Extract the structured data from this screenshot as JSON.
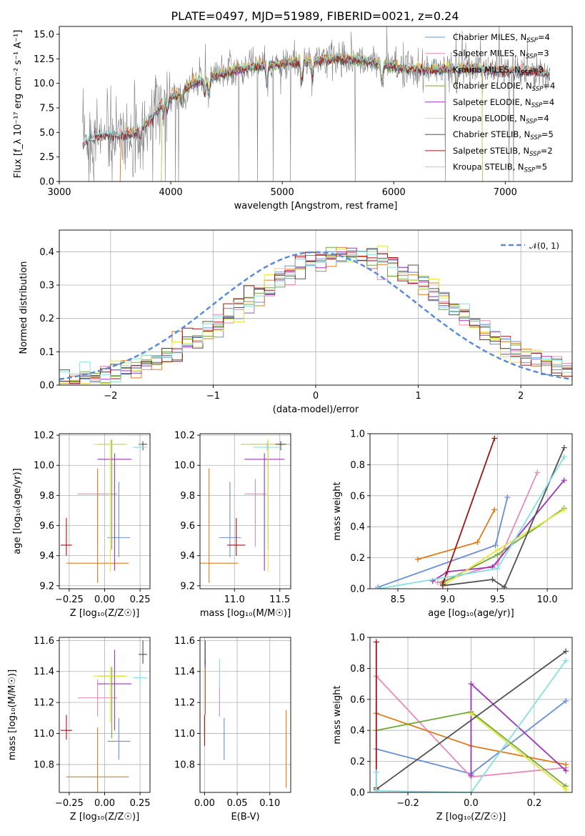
{
  "figure": {
    "title": "PLATE=0497, MJD=51989, FIBERID=0021, z=0.24"
  },
  "colors": {
    "chabrier_miles": "#6a8fd8",
    "salpeter_miles": "#e889b9",
    "kroupa_miles": "#e07b1d",
    "chabrier_elodie": "#70a83a",
    "salpeter_elodie": "#9b35b8",
    "kroupa_elodie": "#e4e63a",
    "chabrier_stelib": "#505050",
    "salpeter_stelib": "#a31212",
    "kroupa_stelib": "#85dfe0",
    "gaussian": "#5b8bd6",
    "data": "#7f7f7f"
  },
  "chart_data": [
    {
      "id": "spectrum",
      "type": "line",
      "xlabel": "wavelength [Angstrom, rest frame]",
      "ylabel": "Flux [f_λ 10⁻¹⁷ erg cm⁻² s⁻¹ A⁻¹]",
      "xlim": [
        3000,
        7600
      ],
      "ylim": [
        0,
        15.8
      ],
      "xticks": [
        "3000",
        "4000",
        "5000",
        "6000",
        "7000"
      ],
      "yticks": [
        "0.0",
        "2.5",
        "5.0",
        "7.5",
        "10.0",
        "12.5",
        "15.0"
      ],
      "grid": false,
      "legend_position": "top-right",
      "continuum": {
        "x": [
          3210,
          3300,
          3400,
          3550,
          3700,
          3850,
          3950,
          4050,
          4200,
          4400,
          4600,
          4800,
          5000,
          5200,
          5500,
          5800,
          6100,
          6400,
          6700,
          7000,
          7300,
          7400
        ],
        "y": [
          3.8,
          4.6,
          4.8,
          4.7,
          4.9,
          6.8,
          8.4,
          8.8,
          10.0,
          10.8,
          11.4,
          11.8,
          12.0,
          12.3,
          12.5,
          12.2,
          11.5,
          11.4,
          11.6,
          11.2,
          11.3,
          11.0
        ]
      },
      "series": [
        {
          "name": "Chabrier MILES, N_SSP=4",
          "color_key": "chabrier_miles",
          "x_start": 3540,
          "x_end": 7400
        },
        {
          "name": "Salpeter MILES, N_SSP=3",
          "color_key": "salpeter_miles",
          "x_start": 3540,
          "x_end": 7400
        },
        {
          "name": "Kroupa MILES, N_SSP=3",
          "color_key": "kroupa_miles",
          "x_start": 3540,
          "x_end": 7400
        },
        {
          "name": "Chabrier ELODIE, N_SSP=4",
          "color_key": "chabrier_elodie",
          "x_start": 3910,
          "x_end": 6800
        },
        {
          "name": "Salpeter ELODIE, N_SSP=4",
          "color_key": "salpeter_elodie",
          "x_start": 3910,
          "x_end": 6800
        },
        {
          "name": "Kroupa ELODIE, N_SSP=4",
          "color_key": "kroupa_elodie",
          "x_start": 3910,
          "x_end": 6800
        },
        {
          "name": "Chabrier STELIB, N_SSP=5",
          "color_key": "chabrier_stelib",
          "x_start": 3210,
          "x_end": 7400
        },
        {
          "name": "Salpeter STELIB, N_SSP=2",
          "color_key": "salpeter_stelib",
          "x_start": 3210,
          "x_end": 7400
        },
        {
          "name": "Kroupa STELIB, N_SSP=5",
          "color_key": "kroupa_stelib",
          "x_start": 3210,
          "x_end": 7400
        }
      ]
    },
    {
      "id": "residuals",
      "type": "line",
      "xlabel": "(data-model)/error",
      "ylabel": "Normed distribution",
      "xlim": [
        -2.5,
        2.5
      ],
      "ylim": [
        0,
        0.465
      ],
      "xticks": [
        "−2",
        "−1",
        "0",
        "1",
        "2"
      ],
      "yticks": [
        "0.0",
        "0.1",
        "0.2",
        "0.3",
        "0.4"
      ],
      "grid": true,
      "legend_position": "top-right",
      "legend": "𝒩(0, 1)",
      "histogram_style": "step",
      "bin_width": 0.1
    },
    {
      "id": "age_vs_Z",
      "type": "scatter",
      "xlabel": "Z [log₁₀(Z/Z☉)]",
      "ylabel": "age  [log₁₀(age/yr)]",
      "xlim": [
        -0.32,
        0.32
      ],
      "ylim": [
        9.18,
        10.21
      ],
      "xticks": [
        -0.25,
        0.0,
        0.25
      ],
      "yticks": [
        9.2,
        9.4,
        9.6,
        9.8,
        10.0,
        10.2
      ],
      "grid": true,
      "points": [
        {
          "key": "chabrier_miles",
          "x": 0.1,
          "xerr": [
            0.08,
            0.08
          ],
          "y": 9.52,
          "yerr": [
            0.13,
            0.37
          ]
        },
        {
          "key": "salpeter_miles",
          "x": -0.05,
          "xerr": [
            0.14,
            0.14
          ],
          "y": 9.81,
          "yerr": [
            0.35,
            0.1
          ]
        },
        {
          "key": "kroupa_miles",
          "x": -0.05,
          "xerr": [
            0.22,
            0.22
          ],
          "y": 9.35,
          "yerr": [
            0.13,
            0.63
          ]
        },
        {
          "key": "chabrier_elodie",
          "x": 0.05,
          "xerr": [
            0.1,
            0.1
          ],
          "y": 10.14,
          "yerr": [
            0.7,
            0.03
          ]
        },
        {
          "key": "salpeter_elodie",
          "x": 0.07,
          "xerr": [
            0.12,
            0.12
          ],
          "y": 10.04,
          "yerr": [
            0.74,
            0.04
          ]
        },
        {
          "key": "kroupa_elodie",
          "x": 0.04,
          "xerr": [
            0.12,
            0.12
          ],
          "y": 10.14,
          "yerr": [
            0.85,
            0.03
          ]
        },
        {
          "key": "chabrier_stelib",
          "x": 0.27,
          "xerr": [
            0.03,
            0.03
          ],
          "y": 10.14,
          "yerr": [
            0.04,
            0.02
          ]
        },
        {
          "key": "salpeter_stelib",
          "x": -0.27,
          "xerr": [
            0.04,
            0.04
          ],
          "y": 9.47,
          "yerr": [
            0.07,
            0.18
          ]
        },
        {
          "key": "kroupa_stelib",
          "x": 0.25,
          "xerr": [
            0.05,
            0.05
          ],
          "y": 10.12,
          "yerr": [
            0.02,
            0.03
          ]
        }
      ]
    },
    {
      "id": "age_vs_mass",
      "type": "scatter",
      "xlabel": "mass [log₁₀(M/M☉)]",
      "ylabel": "",
      "xlim": [
        10.62,
        11.62
      ],
      "ylim": [
        9.18,
        10.21
      ],
      "xticks": [
        11.0,
        11.5
      ],
      "yticks": [
        9.2,
        9.4,
        9.6,
        9.8,
        10.0,
        10.2
      ],
      "grid": true,
      "points": [
        {
          "key": "chabrier_miles",
          "x": 10.95,
          "xerr": [
            0.12,
            0.12
          ],
          "y": 9.52,
          "yerr": [
            0.13,
            0.37
          ]
        },
        {
          "key": "salpeter_miles",
          "x": 11.23,
          "xerr": [
            0.12,
            0.12
          ],
          "y": 9.81,
          "yerr": [
            0.35,
            0.1
          ]
        },
        {
          "key": "kroupa_miles",
          "x": 10.72,
          "xerr": [
            0.32,
            0.32
          ],
          "y": 9.35,
          "yerr": [
            0.13,
            0.63
          ]
        },
        {
          "key": "chabrier_elodie",
          "x": 11.37,
          "xerr": [
            0.3,
            0.3
          ],
          "y": 10.14,
          "yerr": [
            0.7,
            0.03
          ]
        },
        {
          "key": "salpeter_elodie",
          "x": 11.33,
          "xerr": [
            0.22,
            0.22
          ],
          "y": 10.04,
          "yerr": [
            0.74,
            0.04
          ]
        },
        {
          "key": "kroupa_elodie",
          "x": 11.37,
          "xerr": [
            0.3,
            0.3
          ],
          "y": 10.14,
          "yerr": [
            0.85,
            0.03
          ]
        },
        {
          "key": "chabrier_stelib",
          "x": 11.51,
          "xerr": [
            0.06,
            0.06
          ],
          "y": 10.14,
          "yerr": [
            0.04,
            0.02
          ]
        },
        {
          "key": "salpeter_stelib",
          "x": 11.02,
          "xerr": [
            0.1,
            0.1
          ],
          "y": 9.47,
          "yerr": [
            0.07,
            0.18
          ]
        },
        {
          "key": "kroupa_stelib",
          "x": 11.36,
          "xerr": [
            0.15,
            0.15
          ],
          "y": 10.12,
          "yerr": [
            0.02,
            0.03
          ]
        }
      ]
    },
    {
      "id": "weight_vs_age",
      "type": "line",
      "xlabel": "age  [log₁₀(age/yr)]",
      "ylabel": "mass weight",
      "xlim": [
        8.22,
        10.25
      ],
      "ylim": [
        0,
        1.0
      ],
      "xticks": [
        8.5,
        9.0,
        9.5,
        10.0
      ],
      "yticks": [
        0.0,
        0.2,
        0.4,
        0.6,
        0.8,
        1.0
      ],
      "grid": true,
      "series": [
        {
          "key": "chabrier_miles",
          "x": [
            8.3,
            9.48,
            9.6
          ],
          "y": [
            0.01,
            0.28,
            0.59
          ]
        },
        {
          "key": "salpeter_miles",
          "x": [
            8.9,
            9.5,
            9.9
          ],
          "y": [
            0.04,
            0.16,
            0.75
          ]
        },
        {
          "key": "kroupa_miles",
          "x": [
            8.7,
            9.3,
            9.47
          ],
          "y": [
            0.19,
            0.3,
            0.51
          ]
        },
        {
          "key": "chabrier_elodie",
          "x": [
            8.95,
            9.5,
            10.17
          ],
          "y": [
            0.04,
            0.22,
            0.52
          ]
        },
        {
          "key": "salpeter_elodie",
          "x": [
            8.85,
            9.0,
            9.45,
            10.17
          ],
          "y": [
            0.05,
            0.11,
            0.14,
            0.7
          ]
        },
        {
          "key": "kroupa_elodie",
          "x": [
            8.95,
            9.5,
            10.17
          ],
          "y": [
            0.02,
            0.25,
            0.51
          ]
        },
        {
          "key": "chabrier_stelib",
          "x": [
            8.95,
            9.45,
            9.57,
            10.17
          ],
          "y": [
            0.02,
            0.06,
            0.01,
            0.91
          ]
        },
        {
          "key": "salpeter_stelib",
          "x": [
            8.95,
            9.47
          ],
          "y": [
            0.03,
            0.97
          ]
        },
        {
          "key": "kroupa_stelib",
          "x": [
            8.3,
            9.5,
            10.17
          ],
          "y": [
            0.0,
            0.13,
            0.85
          ]
        }
      ]
    },
    {
      "id": "mass_vs_Z",
      "type": "scatter",
      "xlabel": "Z [log₁₀(Z/Z☉)]",
      "ylabel": "mass [log₁₀(M/M☉)]",
      "xlim": [
        -0.32,
        0.32
      ],
      "ylim": [
        10.62,
        11.62
      ],
      "xticks": [
        -0.25,
        0.0,
        0.25
      ],
      "yticks": [
        10.8,
        11.0,
        11.2,
        11.4,
        11.6
      ],
      "grid": true,
      "points": [
        {
          "key": "chabrier_miles",
          "x": 0.1,
          "xerr": [
            0.08,
            0.08
          ],
          "y": 10.95,
          "yerr": [
            0.12,
            0.15
          ]
        },
        {
          "key": "salpeter_miles",
          "x": -0.05,
          "xerr": [
            0.14,
            0.14
          ],
          "y": 11.23,
          "yerr": [
            0.12,
            0.12
          ]
        },
        {
          "key": "kroupa_miles",
          "x": -0.05,
          "xerr": [
            0.22,
            0.22
          ],
          "y": 10.72,
          "yerr": [
            0.1,
            0.32
          ]
        },
        {
          "key": "chabrier_elodie",
          "x": 0.05,
          "xerr": [
            0.1,
            0.1
          ],
          "y": 11.37,
          "yerr": [
            0.4,
            0.06
          ]
        },
        {
          "key": "salpeter_elodie",
          "x": 0.07,
          "xerr": [
            0.12,
            0.12
          ],
          "y": 11.32,
          "yerr": [
            0.3,
            0.22
          ]
        },
        {
          "key": "kroupa_elodie",
          "x": 0.04,
          "xerr": [
            0.12,
            0.12
          ],
          "y": 11.37,
          "yerr": [
            0.3,
            0.06
          ]
        },
        {
          "key": "chabrier_stelib",
          "x": 0.27,
          "xerr": [
            0.03,
            0.03
          ],
          "y": 11.51,
          "yerr": [
            0.06,
            0.09
          ]
        },
        {
          "key": "salpeter_stelib",
          "x": -0.27,
          "xerr": [
            0.04,
            0.04
          ],
          "y": 11.02,
          "yerr": [
            0.06,
            0.1
          ]
        },
        {
          "key": "kroupa_stelib",
          "x": 0.25,
          "xerr": [
            0.05,
            0.05
          ],
          "y": 11.36,
          "yerr": [
            0.05,
            0.06
          ]
        }
      ]
    },
    {
      "id": "mass_vs_ebv",
      "type": "scatter",
      "xlabel": "E(B-V)",
      "ylabel": "",
      "xlim": [
        -0.007,
        0.132
      ],
      "ylim": [
        10.62,
        11.62
      ],
      "xticks": [
        0.0,
        0.05,
        0.1
      ],
      "yticks": [
        10.8,
        11.0,
        11.2,
        11.4,
        11.6
      ],
      "grid": true,
      "points": [
        {
          "key": "chabrier_miles",
          "x": 0.03,
          "y": 10.95,
          "yerr": [
            0.12,
            0.15
          ]
        },
        {
          "key": "salpeter_miles",
          "x": 0.023,
          "y": 11.23,
          "yerr": [
            0.12,
            0.12
          ]
        },
        {
          "key": "kroupa_miles",
          "x": 0.125,
          "y": 10.72,
          "yerr": [
            0.07,
            0.43
          ]
        },
        {
          "key": "chabrier_elodie",
          "x": 0.0,
          "y": 11.37,
          "yerr": [
            0.4,
            0.06
          ]
        },
        {
          "key": "salpeter_elodie",
          "x": 0.001,
          "y": 11.32,
          "yerr": [
            0.2,
            0.15
          ]
        },
        {
          "key": "kroupa_elodie",
          "x": 0.0,
          "y": 11.37,
          "yerr": [
            0.4,
            0.06
          ]
        },
        {
          "key": "chabrier_stelib",
          "x": 0.001,
          "y": 11.51,
          "yerr": [
            0.06,
            0.09
          ]
        },
        {
          "key": "salpeter_stelib",
          "x": 0.0,
          "y": 11.02,
          "yerr": [
            0.1,
            0.1
          ]
        },
        {
          "key": "kroupa_stelib",
          "x": 0.023,
          "y": 11.36,
          "yerr": [
            0.06,
            0.12
          ]
        }
      ]
    },
    {
      "id": "weight_vs_Z",
      "type": "line",
      "xlabel": "Z [log₁₀(Z/Z☉)]",
      "ylabel": "mass weight",
      "xlim": [
        -0.32,
        0.32
      ],
      "ylim": [
        0,
        1.0
      ],
      "xticks": [
        -0.2,
        0.0,
        0.2
      ],
      "yticks": [
        0.0,
        0.2,
        0.4,
        0.6,
        0.8,
        1.0
      ],
      "grid": true,
      "series": [
        {
          "key": "chabrier_miles",
          "x": [
            -0.3,
            0.0,
            0.3
          ],
          "y": [
            0.28,
            0.12,
            0.59
          ]
        },
        {
          "key": "salpeter_miles",
          "x": [
            -0.3,
            0.0,
            0.3
          ],
          "y": [
            0.75,
            0.1,
            0.16
          ]
        },
        {
          "key": "kroupa_miles",
          "x": [
            -0.3,
            0.0,
            0.3
          ],
          "y": [
            0.51,
            0.3,
            0.18
          ]
        },
        {
          "key": "chabrier_elodie",
          "x": [
            -0.3,
            0.0,
            0.3
          ],
          "y": [
            0.4,
            0.52,
            0.04
          ]
        },
        {
          "key": "salpeter_elodie",
          "x": [
            0.0,
            0.0,
            0.3
          ],
          "y": [
            0.11,
            0.7,
            0.14
          ]
        },
        {
          "key": "kroupa_elodie",
          "x": [
            0.0,
            0.3,
            0.3
          ],
          "y": [
            0.51,
            0.02,
            0.0
          ]
        },
        {
          "key": "chabrier_stelib",
          "x": [
            -0.3,
            0.3
          ],
          "y": [
            0.02,
            0.91
          ]
        },
        {
          "key": "salpeter_stelib",
          "x": [
            -0.3,
            -0.3
          ],
          "y": [
            0.03,
            0.97
          ]
        },
        {
          "key": "kroupa_stelib",
          "x": [
            -0.3,
            -0.3,
            0.0,
            0.3
          ],
          "y": [
            0.13,
            0.01,
            0.0,
            0.85
          ]
        }
      ]
    }
  ]
}
